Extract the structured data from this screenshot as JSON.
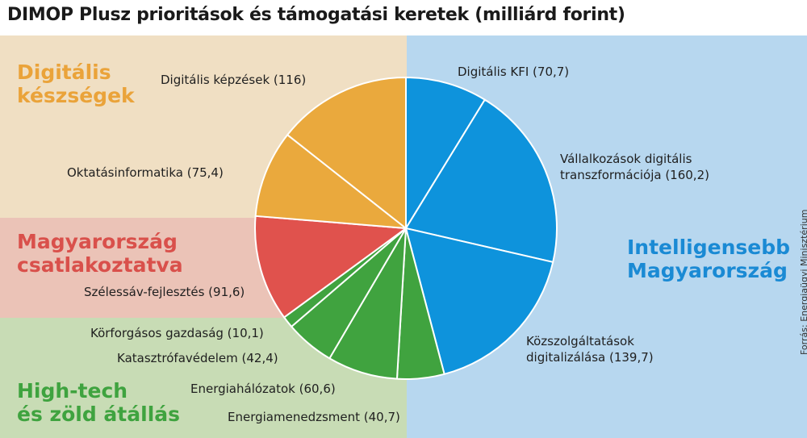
{
  "title": "DIMOP Plusz prioritások és támogatási keretek (milliárd forint)",
  "source": "Forrás: Energiaügyi Minisztérium",
  "groups": {
    "digital": [
      "Digitális",
      "készségek"
    ],
    "connected": [
      "Magyarország",
      "csatlakoztatva"
    ],
    "hightech": [
      "High-tech",
      "és zöld átállás"
    ],
    "smart": [
      "Intelligensebb",
      "Magyarország"
    ]
  },
  "labels": {
    "kfi": "Digitális KFI (70,7)",
    "vallalkozasok": [
      "Vállalkozások digitális",
      "transzformációja (160,2)"
    ],
    "kozszolg": [
      "Közszolgáltatások",
      "digitalizálása (139,7)"
    ],
    "energiamenedzsment": "Energiamenedzsment (40,7)",
    "energiahalozatok": "Energiahálózatok (60,6)",
    "katasztrofa": "Katasztrófavédelem (42,4)",
    "korforgasos": "Körforgásos gazdaság (10,1)",
    "szelessav": "Szélessáv-fejlesztés (91,6)",
    "oktatas": "Oktatásinformatika (75,4)",
    "kepzesek": "Digitális képzések (116)"
  },
  "colors": {
    "digital": "#eaa93d",
    "connected": "#e0524d",
    "hightech": "#40a33f",
    "smart": "#0e93dc"
  },
  "chart_data": {
    "type": "pie",
    "start": "12 o'clock, clockwise",
    "slices": [
      {
        "label": "Digitális KFI",
        "value": 70.7,
        "group": "smart"
      },
      {
        "label": "Vállalkozások digitális transzformációja",
        "value": 160.2,
        "group": "smart"
      },
      {
        "label": "Közszolgáltatások digitalizálása",
        "value": 139.7,
        "group": "smart"
      },
      {
        "label": "Energiamenedzsment",
        "value": 40.7,
        "group": "hightech"
      },
      {
        "label": "Energiahálózatok",
        "value": 60.6,
        "group": "hightech"
      },
      {
        "label": "Katasztrófavédelem",
        "value": 42.4,
        "group": "hightech"
      },
      {
        "label": "Körforgásos gazdaság",
        "value": 10.1,
        "group": "hightech"
      },
      {
        "label": "Szélessáv-fejlesztés",
        "value": 91.6,
        "group": "connected"
      },
      {
        "label": "Oktatásinformatika",
        "value": 75.4,
        "group": "digital"
      },
      {
        "label": "Digitális képzések",
        "value": 116,
        "group": "digital"
      }
    ]
  }
}
